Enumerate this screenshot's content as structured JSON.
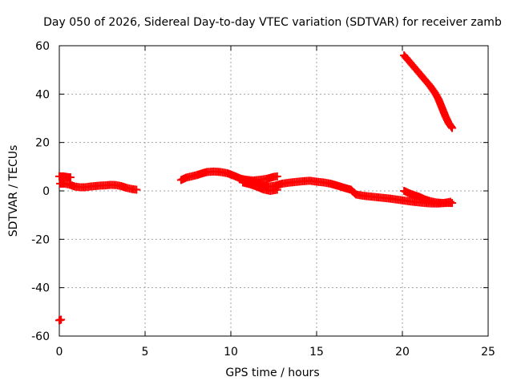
{
  "chart_data": {
    "type": "scatter",
    "title": "Day 050 of 2026, Sidereal Day-to-day VTEC variation (SDTVAR) for receiver zamb",
    "xlabel": "GPS time / hours",
    "ylabel": "SDTVAR / TECUs",
    "xlim": [
      0,
      25
    ],
    "ylim": [
      -60,
      60
    ],
    "x_ticks": [
      0,
      5,
      10,
      15,
      20,
      25
    ],
    "y_ticks": [
      -60,
      -40,
      -20,
      0,
      20,
      40,
      60
    ],
    "x_tick_labels": [
      "0",
      "5",
      "10",
      "15",
      "20",
      "25"
    ],
    "y_tick_labels": [
      "-60",
      "-40",
      "-20",
      "0",
      "20",
      "40",
      "60"
    ],
    "grid": true,
    "marker": "+",
    "series": [
      {
        "name": "SDTVAR",
        "color": "#ff0000",
        "marker": "+",
        "segments": [
          {
            "points": [
              [
                0.0,
                -53.5
              ],
              [
                0.1,
                -53.2
              ]
            ]
          },
          {
            "points": [
              [
                0.0,
                6.0
              ],
              [
                0.25,
                6.0
              ],
              [
                0.5,
                5.7
              ],
              [
                0.65,
                5.6
              ]
            ]
          },
          {
            "points": [
              [
                0.05,
                3.0
              ],
              [
                0.3,
                3.0
              ],
              [
                0.6,
                2.6
              ],
              [
                0.9,
                1.8
              ],
              [
                1.2,
                1.5
              ],
              [
                1.5,
                1.5
              ],
              [
                1.8,
                1.8
              ],
              [
                2.1,
                2.0
              ],
              [
                2.4,
                2.2
              ],
              [
                2.7,
                2.3
              ],
              [
                3.0,
                2.5
              ],
              [
                3.3,
                2.4
              ],
              [
                3.6,
                2.0
              ],
              [
                3.9,
                1.3
              ],
              [
                4.2,
                0.8
              ],
              [
                4.5,
                0.5
              ]
            ]
          },
          {
            "points": [
              [
                7.1,
                4.5
              ],
              [
                7.4,
                5.5
              ],
              [
                7.7,
                6.0
              ],
              [
                8.0,
                6.5
              ],
              [
                8.3,
                7.2
              ],
              [
                8.6,
                7.8
              ],
              [
                9.0,
                8.0
              ],
              [
                9.4,
                7.8
              ],
              [
                9.8,
                7.3
              ],
              [
                10.2,
                6.2
              ],
              [
                10.6,
                5.0
              ],
              [
                11.0,
                4.3
              ],
              [
                11.4,
                3.5
              ],
              [
                11.8,
                2.5
              ],
              [
                12.2,
                1.8
              ],
              [
                12.6,
                2.2
              ],
              [
                13.0,
                3.0
              ],
              [
                13.4,
                3.4
              ],
              [
                13.8,
                3.7
              ],
              [
                14.2,
                4.0
              ],
              [
                14.6,
                4.2
              ],
              [
                15.0,
                3.8
              ],
              [
                15.4,
                3.5
              ],
              [
                15.8,
                3.0
              ],
              [
                16.2,
                2.2
              ],
              [
                16.6,
                1.3
              ],
              [
                17.0,
                0.5
              ]
            ]
          },
          {
            "points": [
              [
                10.5,
                5.0
              ],
              [
                10.9,
                4.6
              ],
              [
                11.3,
                4.3
              ],
              [
                11.7,
                4.6
              ],
              [
                12.1,
                5.0
              ],
              [
                12.5,
                5.8
              ],
              [
                12.7,
                6.0
              ]
            ]
          },
          {
            "points": [
              [
                10.7,
                3.5
              ],
              [
                11.1,
                2.8
              ],
              [
                11.5,
                1.8
              ],
              [
                11.9,
                0.6
              ],
              [
                12.3,
                0.0
              ],
              [
                12.7,
                0.5
              ]
            ]
          },
          {
            "points": [
              [
                17.0,
                0.5
              ],
              [
                17.3,
                -1.5
              ],
              [
                17.7,
                -2.0
              ],
              [
                18.1,
                -2.3
              ],
              [
                18.5,
                -2.6
              ],
              [
                18.9,
                -2.9
              ],
              [
                19.3,
                -3.2
              ],
              [
                19.7,
                -3.6
              ],
              [
                20.1,
                -4.0
              ],
              [
                20.5,
                -4.4
              ],
              [
                20.9,
                -4.7
              ],
              [
                21.3,
                -5.0
              ],
              [
                21.7,
                -5.2
              ],
              [
                22.1,
                -5.2
              ],
              [
                22.5,
                -5.0
              ],
              [
                22.9,
                -5.0
              ]
            ]
          },
          {
            "points": [
              [
                20.1,
                0.0
              ],
              [
                20.4,
                -1.0
              ],
              [
                20.7,
                -1.8
              ],
              [
                21.0,
                -2.5
              ],
              [
                21.3,
                -3.5
              ],
              [
                21.6,
                -4.2
              ],
              [
                22.0,
                -4.8
              ],
              [
                22.4,
                -5.0
              ],
              [
                22.8,
                -4.5
              ]
            ]
          },
          {
            "points": [
              [
                20.1,
                56.0
              ],
              [
                20.4,
                53.5
              ],
              [
                20.7,
                51.0
              ],
              [
                21.0,
                48.5
              ],
              [
                21.3,
                46.0
              ],
              [
                21.6,
                43.5
              ],
              [
                21.9,
                40.5
              ],
              [
                22.1,
                38.0
              ],
              [
                22.3,
                34.5
              ],
              [
                22.5,
                31.0
              ],
              [
                22.7,
                28.0
              ],
              [
                22.9,
                26.0
              ]
            ]
          }
        ]
      }
    ]
  }
}
